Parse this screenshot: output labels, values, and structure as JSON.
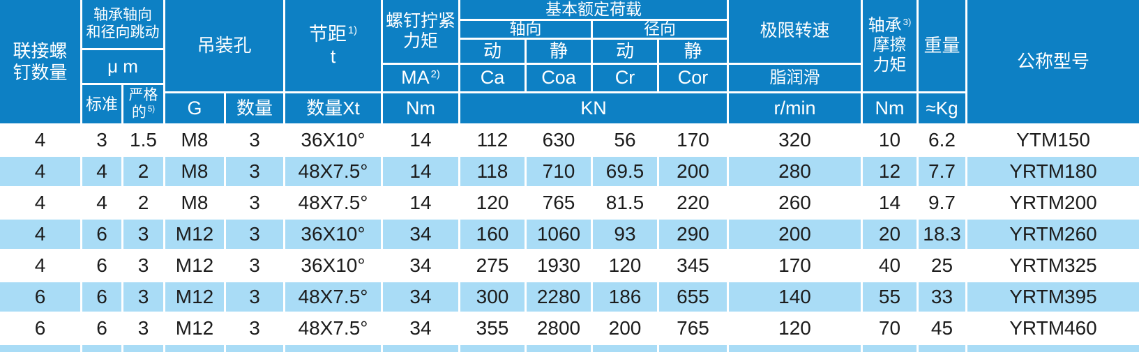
{
  "colors": {
    "header_bg": "#0d80c4",
    "header_text": "#ffffff",
    "row_white": "#ffffff",
    "row_light_blue": "#a9dcf6",
    "grid_line": "#ffffff",
    "body_text": "#1c1c1c"
  },
  "header": {
    "connect_screws": "联接螺\n钉数量",
    "runout_group": "轴承轴向\n和径向跳动",
    "runout_unit": "μ m",
    "standard": "标准",
    "strict_line1": "严格",
    "strict_line2": "的",
    "strict_sup": "5)",
    "lifting_hole": "吊装孔",
    "g": "G",
    "qty": "数量",
    "pitch_text": "节距",
    "pitch_sup": "1)",
    "pitch_sym": "t",
    "pitch_qty": "数量Xt",
    "torque_group": "螺钉拧紧\n力矩",
    "torque_ma": "MA",
    "torque_ma_sup": "2)",
    "torque_unit": "Nm",
    "load_group": "基本额定荷载",
    "axial": "轴向",
    "radial": "径向",
    "axial_dynamic": "动",
    "axial_static": "静",
    "radial_dynamic": "动",
    "radial_static": "静",
    "ca": "Ca",
    "coa": "Coa",
    "cr": "Cr",
    "cor": "Cor",
    "load_unit": "KN",
    "speed_group": "极限转速",
    "grease": "脂润滑",
    "speed_unit": "r/min",
    "friction_line1": "轴承",
    "friction_sup": "3)",
    "friction_rest": "摩擦\n力矩",
    "friction_unit": "Nm",
    "weight": "重量",
    "weight_unit": "≈Kg",
    "model": "公称型号"
  },
  "chart_data": {
    "type": "table",
    "columns": [
      "联接螺钉数量",
      "轴承轴向和径向跳动 标准 (μm)",
      "轴承轴向和径向跳动 严格的5) (μm)",
      "吊装孔 G",
      "吊装孔 数量",
      "节距1) t 数量Xt",
      "螺钉拧紧力矩 MA2) (Nm)",
      "基本额定荷载 轴向 动 Ca (KN)",
      "基本额定荷载 轴向 静 Coa (KN)",
      "基本额定荷载 径向 动 Cr (KN)",
      "基本额定荷载 径向 静 Cor (KN)",
      "极限转速 脂润滑 (r/min)",
      "轴承3)摩擦力矩 (Nm)",
      "重量 (≈Kg)",
      "公称型号"
    ],
    "rows": [
      [
        "4",
        "3",
        "1.5",
        "M8",
        "3",
        "36X10°",
        "14",
        "112",
        "630",
        "56",
        "170",
        "320",
        "10",
        "6.2",
        "YTM150"
      ],
      [
        "4",
        "4",
        "2",
        "M8",
        "3",
        "48X7.5°",
        "14",
        "118",
        "710",
        "69.5",
        "200",
        "280",
        "12",
        "7.7",
        "YRTM180"
      ],
      [
        "4",
        "4",
        "2",
        "M8",
        "3",
        "48X7.5°",
        "14",
        "120",
        "765",
        "81.5",
        "220",
        "260",
        "14",
        "9.7",
        "YRTM200"
      ],
      [
        "4",
        "6",
        "3",
        "M12",
        "3",
        "36X10°",
        "34",
        "160",
        "1060",
        "93",
        "290",
        "200",
        "20",
        "18.3",
        "YRTM260"
      ],
      [
        "4",
        "6",
        "3",
        "M12",
        "3",
        "36X10°",
        "34",
        "275",
        "1930",
        "120",
        "345",
        "170",
        "40",
        "25",
        "YRTM325"
      ],
      [
        "6",
        "6",
        "3",
        "M12",
        "3",
        "48X7.5°",
        "34",
        "300",
        "2280",
        "186",
        "655",
        "140",
        "55",
        "33",
        "YRTM395"
      ],
      [
        "6",
        "6",
        "3",
        "M12",
        "3",
        "48X7.5°",
        "34",
        "355",
        "2800",
        "200",
        "765",
        "120",
        "70",
        "45",
        "YRTM460"
      ]
    ]
  }
}
